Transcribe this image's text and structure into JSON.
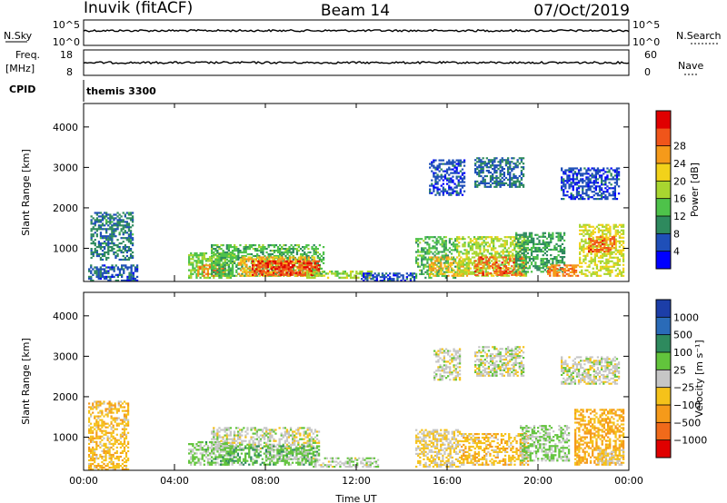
{
  "header": {
    "station": "Inuvik (fitACF)",
    "beam": "Beam 14",
    "date": "07/Oct/2019"
  },
  "strip": {
    "nsky_label": "N.Sky",
    "nsky_ticks": [
      "10^5",
      "10^0"
    ],
    "nsearch_label": "N.Search",
    "nsearch_ticks": [
      "10^5",
      "10^0"
    ],
    "freq_label": "Freq.",
    "freq_unit": "[MHz]",
    "freq_ticks": [
      "18",
      "8"
    ],
    "nave_label": "Nave",
    "nave_ticks": [
      "60",
      "0"
    ],
    "cpid_label": "CPID",
    "cpid_value": "themis 3300"
  },
  "colors": {
    "power_scale": [
      "#0000ff",
      "#1f4fb8",
      "#2e8a5e",
      "#4ec24a",
      "#a8d630",
      "#f2d21a",
      "#f59a1a",
      "#f0551a",
      "#e00000"
    ],
    "velocity_scale": [
      "#1c3ea8",
      "#2a6bb8",
      "#2e8a5e",
      "#62c43c",
      "#c6c6c6",
      "#f5c21a",
      "#f59a1a",
      "#f06a1a",
      "#e00000"
    ]
  },
  "chart_data": [
    {
      "type": "heatmap",
      "name": "power",
      "xlabel": "",
      "ylabel": "Slant Range [km]",
      "x_ticks": [
        "00:00",
        "04:00",
        "08:00",
        "12:00",
        "16:00",
        "20:00",
        "00:00"
      ],
      "y_ticks": [
        "1000",
        "2000",
        "3000",
        "4000"
      ],
      "ylim": [
        180,
        4580
      ],
      "xlim_hours": [
        0,
        24
      ],
      "colorbar": {
        "label": "Power [dB]",
        "ticks": [
          "4",
          "8",
          "12",
          "16",
          "20",
          "24",
          "28"
        ],
        "range": [
          0,
          32
        ]
      },
      "regions": [
        {
          "t0": 0.2,
          "t1": 2.4,
          "r0": 180,
          "r1": 600,
          "v": 6
        },
        {
          "t0": 0.3,
          "t1": 2.2,
          "r0": 700,
          "r1": 1900,
          "v": 8
        },
        {
          "t0": 4.6,
          "t1": 6.6,
          "r0": 250,
          "r1": 900,
          "v": 14
        },
        {
          "t0": 5.0,
          "t1": 6.2,
          "r0": 300,
          "r1": 600,
          "v": 24
        },
        {
          "t0": 5.6,
          "t1": 10.6,
          "r0": 300,
          "r1": 1100,
          "v": 12
        },
        {
          "t0": 6.8,
          "t1": 10.2,
          "r0": 300,
          "r1": 800,
          "v": 22
        },
        {
          "t0": 7.4,
          "t1": 10.4,
          "r0": 320,
          "r1": 700,
          "v": 28
        },
        {
          "t0": 9.8,
          "t1": 12.8,
          "r0": 250,
          "r1": 450,
          "v": 16
        },
        {
          "t0": 12.2,
          "t1": 14.6,
          "r0": 180,
          "r1": 400,
          "v": 5
        },
        {
          "t0": 14.6,
          "t1": 16.4,
          "r0": 250,
          "r1": 1300,
          "v": 12
        },
        {
          "t0": 15.2,
          "t1": 17.0,
          "r0": 300,
          "r1": 800,
          "v": 22
        },
        {
          "t0": 16.4,
          "t1": 19.6,
          "r0": 300,
          "r1": 1300,
          "v": 16
        },
        {
          "t0": 17.2,
          "t1": 19.4,
          "r0": 320,
          "r1": 800,
          "v": 26
        },
        {
          "t0": 19.0,
          "t1": 21.2,
          "r0": 400,
          "r1": 1400,
          "v": 10
        },
        {
          "t0": 20.4,
          "t1": 21.8,
          "r0": 300,
          "r1": 600,
          "v": 24
        },
        {
          "t0": 21.8,
          "t1": 23.8,
          "r0": 300,
          "r1": 1600,
          "v": 18
        },
        {
          "t0": 22.2,
          "t1": 23.4,
          "r0": 900,
          "r1": 1300,
          "v": 26
        },
        {
          "t0": 15.2,
          "t1": 16.8,
          "r0": 2300,
          "r1": 3200,
          "v": 5
        },
        {
          "t0": 17.2,
          "t1": 19.4,
          "r0": 2500,
          "r1": 3250,
          "v": 7
        },
        {
          "t0": 21.0,
          "t1": 23.6,
          "r0": 2200,
          "r1": 3000,
          "v": 5
        }
      ]
    },
    {
      "type": "heatmap",
      "name": "velocity",
      "xlabel": "Time UT",
      "ylabel": "Slant Range [km]",
      "x_ticks": [
        "00:00",
        "04:00",
        "08:00",
        "12:00",
        "16:00",
        "20:00",
        "00:00"
      ],
      "y_ticks": [
        "1000",
        "2000",
        "3000",
        "4000"
      ],
      "ylim": [
        180,
        4580
      ],
      "xlim_hours": [
        0,
        24
      ],
      "colorbar": {
        "label": "Velocity [m s⁻¹]",
        "ticks": [
          "1000",
          "500",
          "100",
          "25",
          "−25",
          "−100",
          "−500",
          "−1000"
        ],
        "range": [
          -1200,
          1200
        ]
      },
      "regions": [
        {
          "t0": 0.2,
          "t1": 2.0,
          "r0": 180,
          "r1": 1900,
          "v": -300
        },
        {
          "t0": 4.6,
          "t1": 6.6,
          "r0": 300,
          "r1": 900,
          "v": 200
        },
        {
          "t0": 5.6,
          "t1": 10.4,
          "r0": 700,
          "r1": 1250,
          "v": 0
        },
        {
          "t0": 6.0,
          "t1": 10.4,
          "r0": 300,
          "r1": 800,
          "v": 300
        },
        {
          "t0": 8.0,
          "t1": 10.0,
          "r0": 400,
          "r1": 700,
          "v": 120
        },
        {
          "t0": 10.0,
          "t1": 13.0,
          "r0": 250,
          "r1": 500,
          "v": 60
        },
        {
          "t0": 14.6,
          "t1": 16.6,
          "r0": 250,
          "r1": 1200,
          "v": -150
        },
        {
          "t0": 16.6,
          "t1": 19.6,
          "r0": 300,
          "r1": 1100,
          "v": -300
        },
        {
          "t0": 19.2,
          "t1": 21.4,
          "r0": 400,
          "r1": 1300,
          "v": 150
        },
        {
          "t0": 21.6,
          "t1": 23.8,
          "r0": 300,
          "r1": 1700,
          "v": -400
        },
        {
          "t0": 22.6,
          "t1": 23.8,
          "r0": 300,
          "r1": 700,
          "v": -150
        },
        {
          "t0": 15.4,
          "t1": 16.6,
          "r0": 2400,
          "r1": 3200,
          "v": 0
        },
        {
          "t0": 17.2,
          "t1": 19.4,
          "r0": 2500,
          "r1": 3250,
          "v": 0
        },
        {
          "t0": 21.0,
          "t1": 23.6,
          "r0": 2300,
          "r1": 3000,
          "v": 0
        }
      ]
    }
  ]
}
